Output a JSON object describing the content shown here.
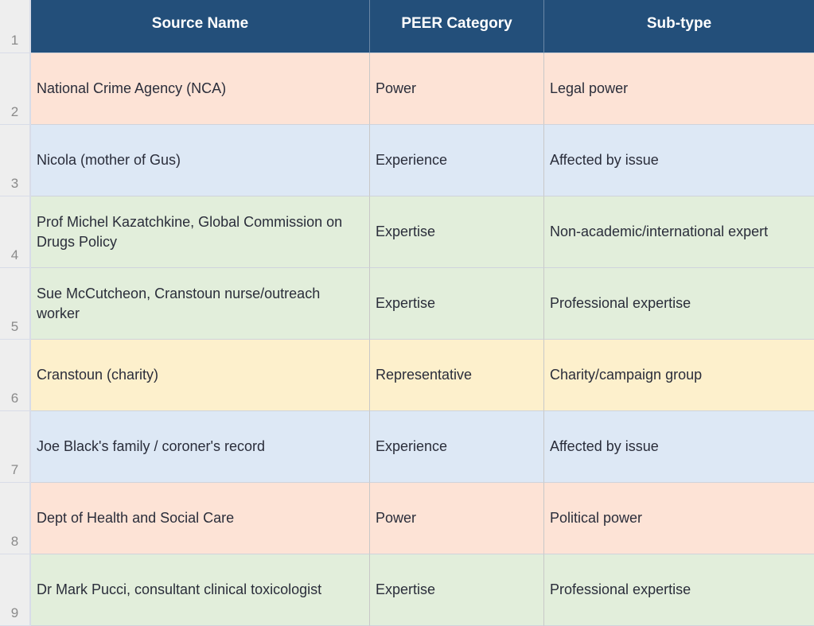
{
  "header": {
    "row_number": "1",
    "columns": [
      "Source Name",
      "PEER Category",
      "Sub-type"
    ]
  },
  "colors": {
    "header_bg": "#234f7a",
    "Power": "#fde3d6",
    "Experience": "#dde8f5",
    "Expertise": "#e2eedb",
    "Representative": "#fdf0cc"
  },
  "rows": [
    {
      "num": "2",
      "source": "National Crime Agency (NCA)",
      "category": "Power",
      "subtype": "Legal power"
    },
    {
      "num": "3",
      "source": "Nicola (mother of Gus)",
      "category": "Experience",
      "subtype": "Affected by issue"
    },
    {
      "num": "4",
      "source": "Prof Michel Kazatchkine, Global Commission on Drugs Policy",
      "category": "Expertise",
      "subtype": "Non-academic/international expert"
    },
    {
      "num": "5",
      "source": "Sue McCutcheon, Cranstoun nurse/outreach worker",
      "category": "Expertise",
      "subtype": "Professional expertise"
    },
    {
      "num": "6",
      "source": "Cranstoun (charity)",
      "category": "Representative",
      "subtype": "Charity/campaign group"
    },
    {
      "num": "7",
      "source": "Joe Black's family / coroner's record",
      "category": "Experience",
      "subtype": "Affected by issue"
    },
    {
      "num": "8",
      "source": "Dept of Health and Social Care",
      "category": "Power",
      "subtype": "Political power"
    },
    {
      "num": "9",
      "source": "Dr Mark Pucci, consultant clinical toxicologist",
      "category": "Expertise",
      "subtype": "Professional expertise"
    }
  ]
}
